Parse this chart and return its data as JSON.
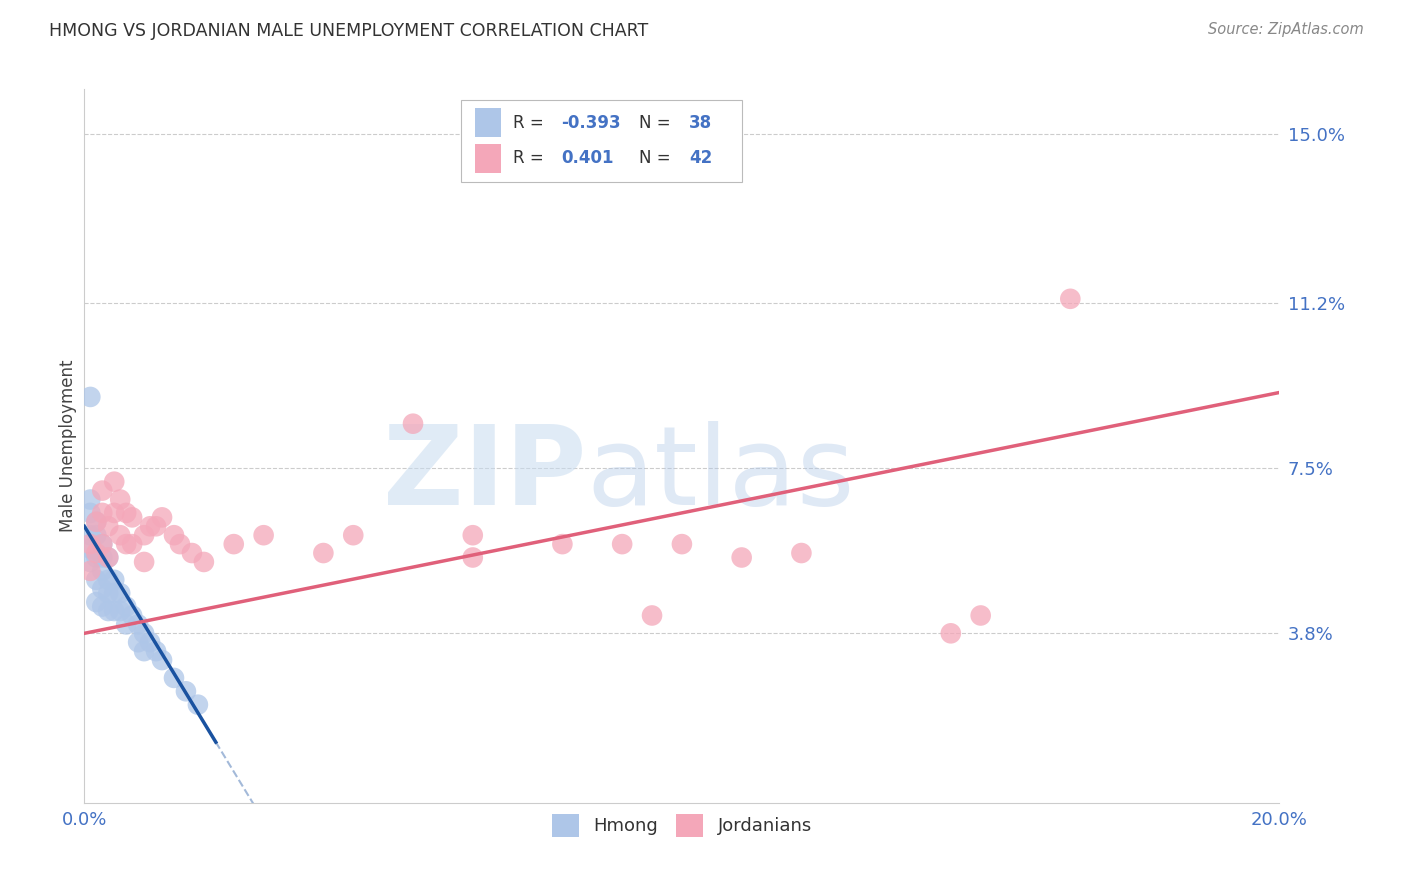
{
  "title": "HMONG VS JORDANIAN MALE UNEMPLOYMENT CORRELATION CHART",
  "source": "Source: ZipAtlas.com",
  "ylabel": "Male Unemployment",
  "watermark_zip": "ZIP",
  "watermark_atlas": "atlas",
  "xmin": 0.0,
  "xmax": 0.2,
  "ymin": 0.0,
  "ymax": 0.16,
  "yticks": [
    0.038,
    0.075,
    0.112,
    0.15
  ],
  "ytick_labels": [
    "3.8%",
    "7.5%",
    "11.2%",
    "15.0%"
  ],
  "xticks": [
    0.0,
    0.04,
    0.08,
    0.12,
    0.16,
    0.2
  ],
  "xtick_labels_show": [
    "0.0%",
    "",
    "",
    "",
    "",
    "20.0%"
  ],
  "hmong_color": "#aec6e8",
  "jordanian_color": "#f4a7b9",
  "hmong_line_color": "#1a52a0",
  "jordanian_line_color": "#e0607a",
  "hmong_R": -0.393,
  "hmong_N": 38,
  "jordanian_R": 0.401,
  "jordanian_N": 42,
  "hmong_scatter_x": [
    0.001,
    0.001,
    0.001,
    0.001,
    0.001,
    0.002,
    0.002,
    0.002,
    0.002,
    0.002,
    0.003,
    0.003,
    0.003,
    0.003,
    0.003,
    0.004,
    0.004,
    0.004,
    0.004,
    0.005,
    0.005,
    0.005,
    0.006,
    0.006,
    0.007,
    0.007,
    0.008,
    0.009,
    0.009,
    0.01,
    0.01,
    0.011,
    0.012,
    0.013,
    0.015,
    0.017,
    0.019,
    0.001
  ],
  "hmong_scatter_y": [
    0.068,
    0.065,
    0.06,
    0.057,
    0.054,
    0.063,
    0.06,
    0.055,
    0.05,
    0.045,
    0.058,
    0.055,
    0.052,
    0.048,
    0.044,
    0.055,
    0.05,
    0.047,
    0.043,
    0.05,
    0.047,
    0.043,
    0.047,
    0.043,
    0.044,
    0.04,
    0.042,
    0.04,
    0.036,
    0.038,
    0.034,
    0.036,
    0.034,
    0.032,
    0.028,
    0.025,
    0.022,
    0.091
  ],
  "jordanian_scatter_x": [
    0.001,
    0.001,
    0.002,
    0.002,
    0.003,
    0.003,
    0.003,
    0.004,
    0.004,
    0.005,
    0.005,
    0.006,
    0.006,
    0.007,
    0.007,
    0.008,
    0.008,
    0.01,
    0.01,
    0.011,
    0.012,
    0.013,
    0.015,
    0.016,
    0.018,
    0.02,
    0.025,
    0.03,
    0.04,
    0.045,
    0.055,
    0.065,
    0.065,
    0.08,
    0.09,
    0.095,
    0.1,
    0.11,
    0.12,
    0.145,
    0.15,
    0.165
  ],
  "jordanian_scatter_y": [
    0.058,
    0.052,
    0.063,
    0.056,
    0.07,
    0.065,
    0.058,
    0.062,
    0.055,
    0.072,
    0.065,
    0.068,
    0.06,
    0.065,
    0.058,
    0.064,
    0.058,
    0.06,
    0.054,
    0.062,
    0.062,
    0.064,
    0.06,
    0.058,
    0.056,
    0.054,
    0.058,
    0.06,
    0.056,
    0.06,
    0.085,
    0.06,
    0.055,
    0.058,
    0.058,
    0.042,
    0.058,
    0.055,
    0.056,
    0.038,
    0.042,
    0.113
  ],
  "background_color": "#ffffff",
  "grid_color": "#cccccc",
  "title_color": "#333333",
  "tick_color": "#4472c4",
  "legend_text_color": "#333333"
}
